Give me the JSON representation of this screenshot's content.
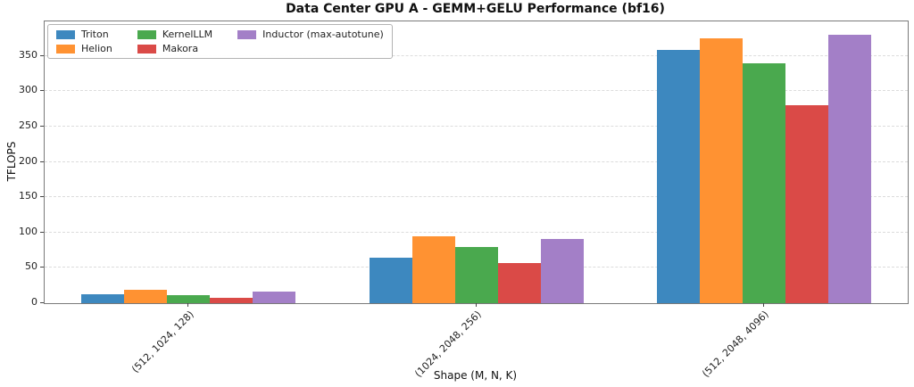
{
  "chart_data": {
    "type": "bar",
    "title": "Data Center GPU A - GEMM+GELU Performance (bf16)",
    "xlabel": "Shape (M, N, K)",
    "ylabel": "TFLOPS",
    "categories": [
      "(512, 1024, 128)",
      "(1024, 2048, 256)",
      "(512, 2048, 4096)"
    ],
    "series": [
      {
        "name": "Triton",
        "color": "#3d88bf",
        "values": [
          13,
          65,
          358
        ]
      },
      {
        "name": "Helion",
        "color": "#ff9232",
        "values": [
          19,
          95,
          375
        ]
      },
      {
        "name": "KernelLLM",
        "color": "#4aa94e",
        "values": [
          12,
          80,
          340
        ]
      },
      {
        "name": "Makora",
        "color": "#da4a47",
        "values": [
          8,
          57,
          280
        ]
      },
      {
        "name": "Inductor (max-autotune)",
        "color": "#a37fc7",
        "values": [
          17,
          91,
          380
        ]
      }
    ],
    "yticks": [
      0,
      50,
      100,
      150,
      200,
      250,
      300,
      350
    ],
    "ylim": [
      0,
      399
    ],
    "grid": "horizontal-dashed",
    "gridline_color": "#dcdcdc",
    "legend_position": "upper-left",
    "legend_columns": 3
  }
}
